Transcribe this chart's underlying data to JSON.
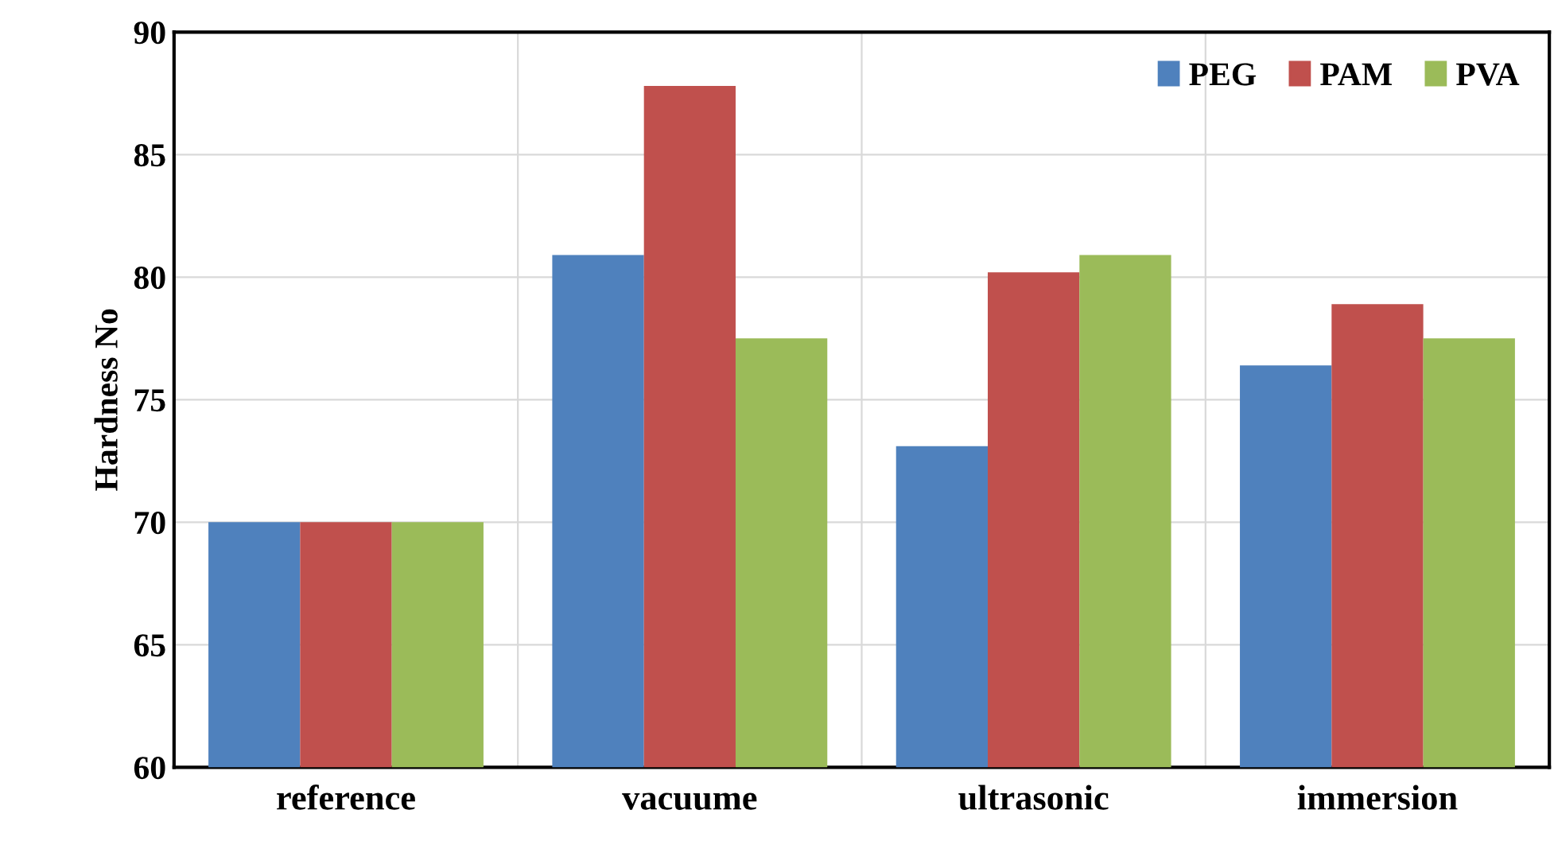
{
  "chart_data": {
    "type": "bar",
    "ylabel": "Hardness No",
    "categories": [
      "reference",
      "vacuume",
      "ultrasonic",
      "immersion"
    ],
    "series": [
      {
        "name": "PEG",
        "color": "#4f81bd",
        "values": [
          70,
          80.9,
          73.1,
          76.4
        ]
      },
      {
        "name": "PAM",
        "color": "#c0504d",
        "values": [
          70,
          87.8,
          80.2,
          78.9
        ]
      },
      {
        "name": "PVA",
        "color": "#9bbb59",
        "values": [
          70,
          77.5,
          80.9,
          77.5
        ]
      }
    ],
    "ylim": [
      60,
      90
    ],
    "yticks": [
      60,
      65,
      70,
      75,
      80,
      85,
      90
    ],
    "grid": true,
    "legend": "top right"
  }
}
